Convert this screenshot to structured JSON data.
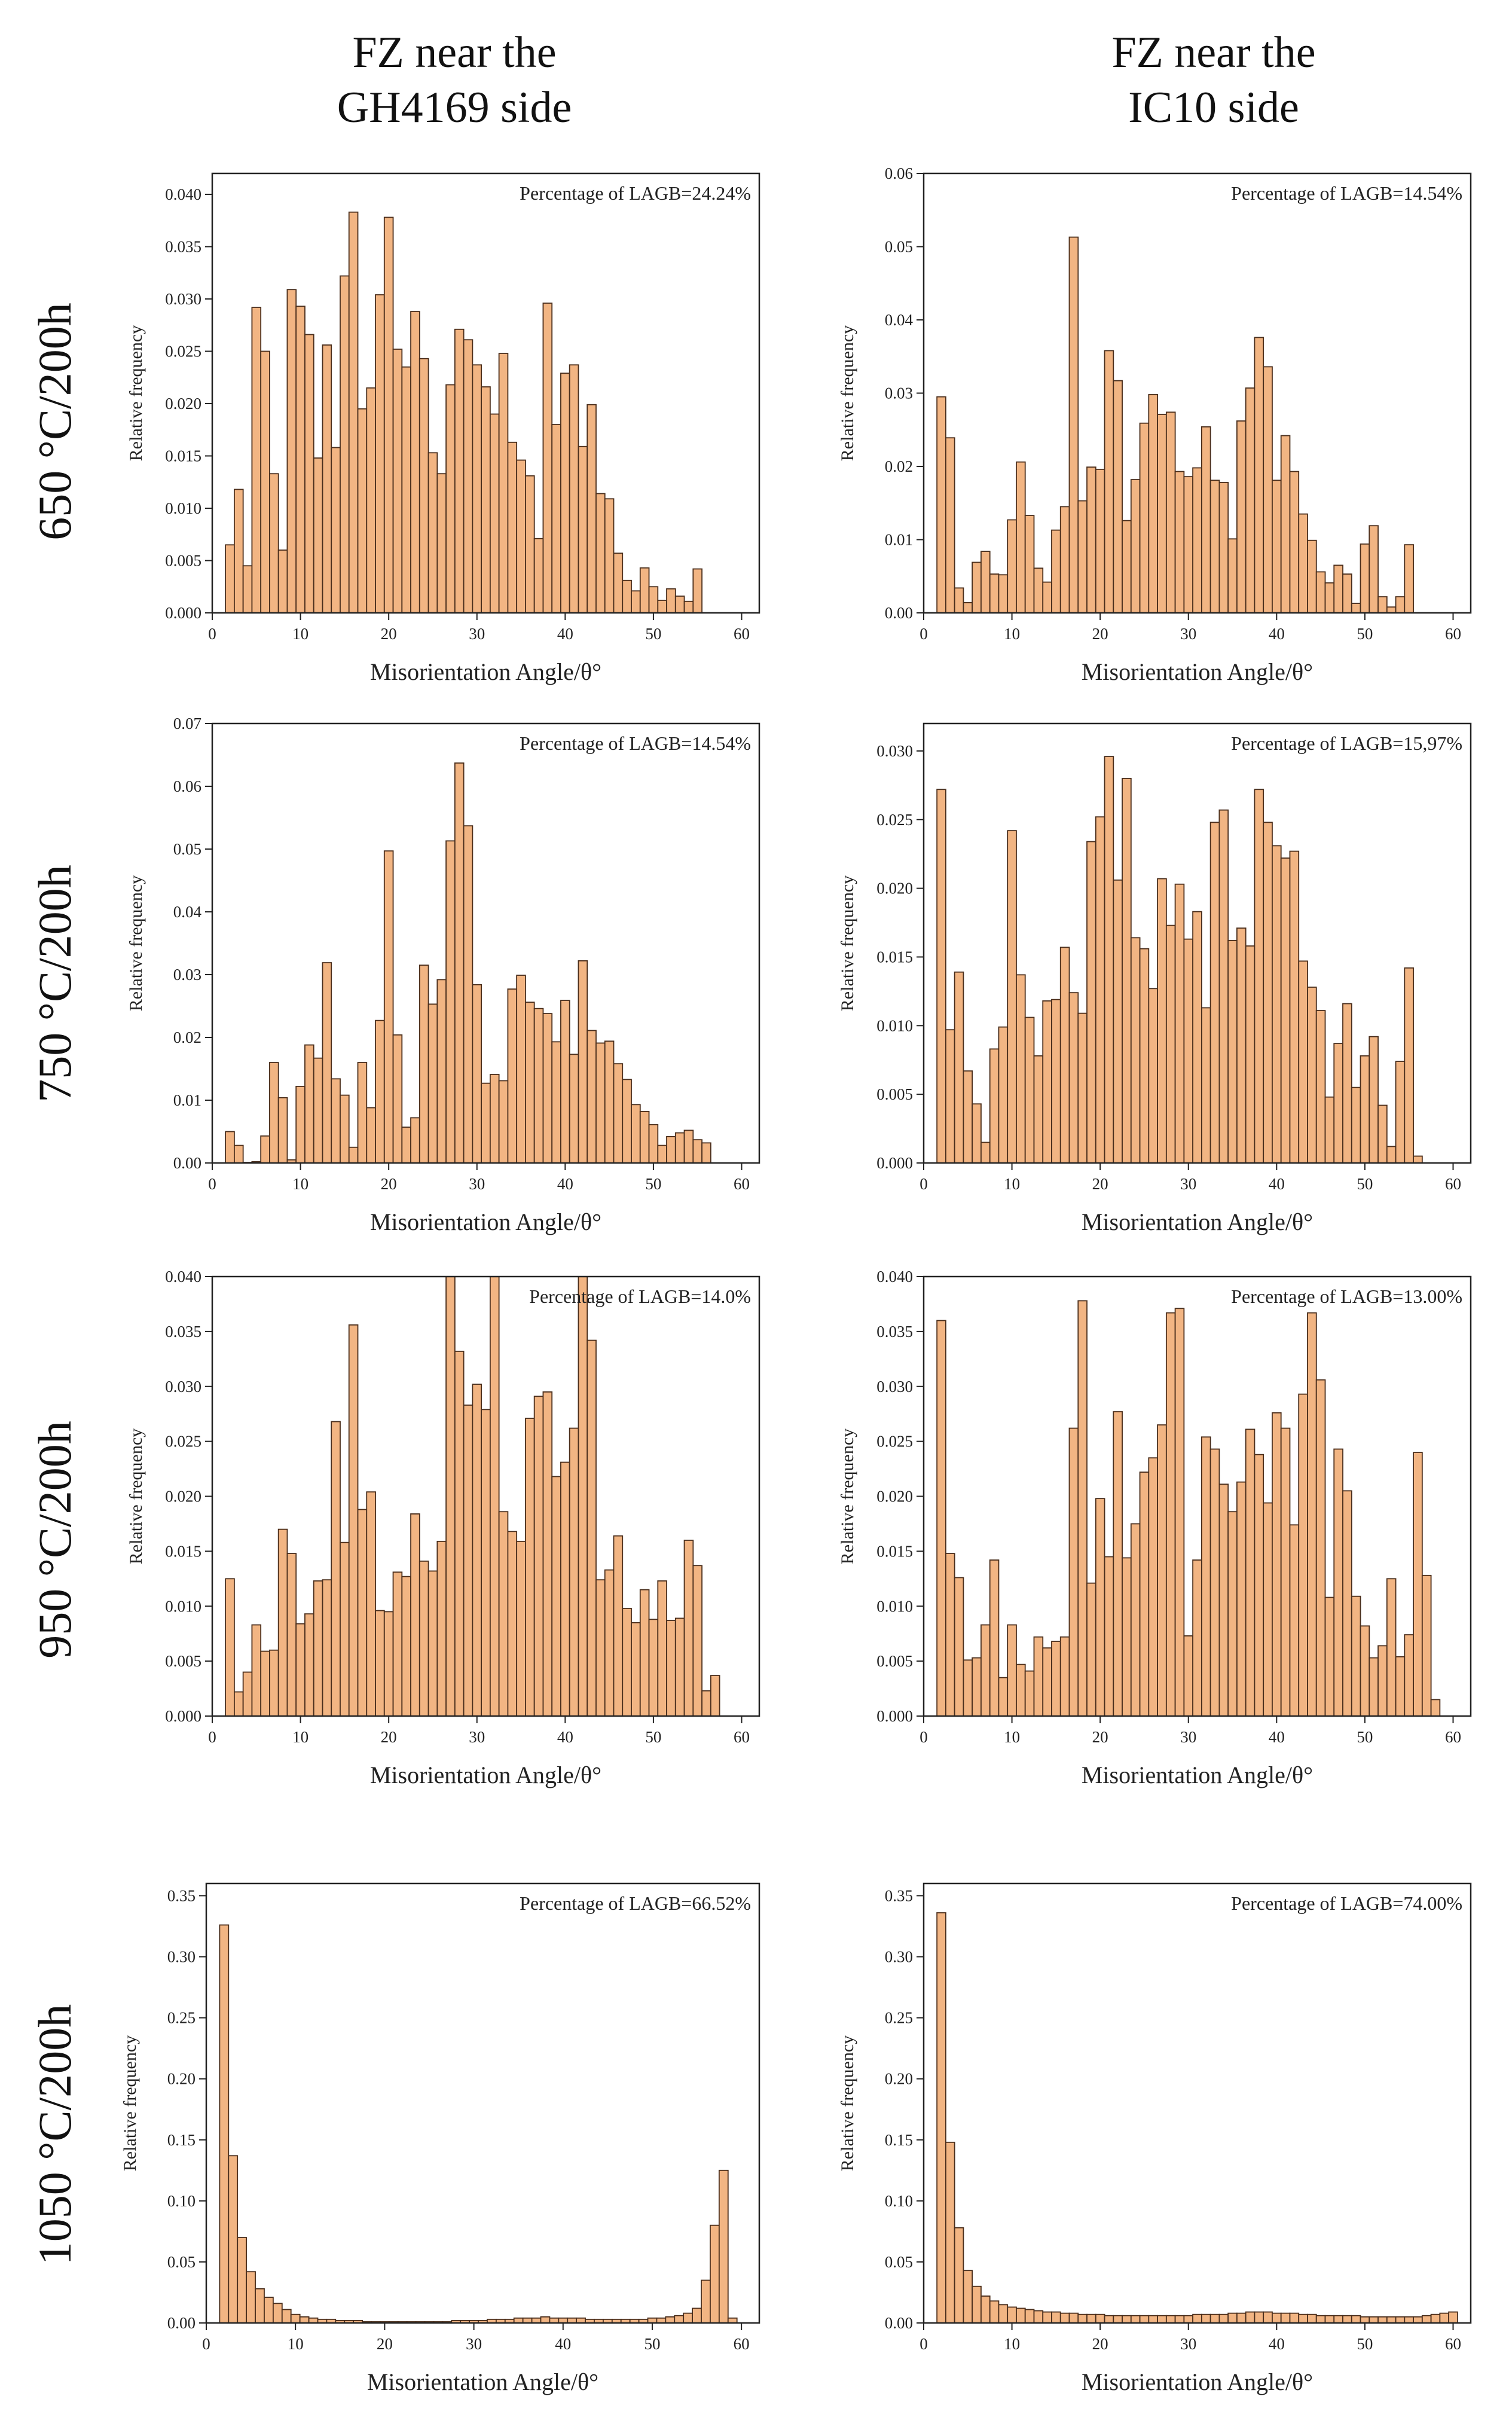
{
  "figure": {
    "column_titles": [
      {
        "line1": "FZ near the",
        "line2": "GH4169 side"
      },
      {
        "line1": "FZ near the",
        "line2": "IC10 side"
      }
    ],
    "row_labels": [
      "650 °C/200h",
      "750 °C/200h",
      "950 °C/200h",
      "1050 °C/200h"
    ]
  },
  "chart_data": [
    {
      "id": "r0c0",
      "type": "bar",
      "title": "",
      "xlabel": "Misorientation Angle/θ°",
      "ylabel": "Relative frequency",
      "xlim": [
        0,
        62
      ],
      "ylim": [
        0,
        0.042
      ],
      "xticks": [
        0,
        10,
        20,
        30,
        40,
        50,
        60
      ],
      "yticks": [
        0,
        0.005,
        0.01,
        0.015,
        0.02,
        0.025,
        0.03,
        0.035,
        0.04
      ],
      "ytick_labels": [
        "0.000",
        "0.005",
        "0.010",
        "0.015",
        "0.020",
        "0.025",
        "0.030",
        "0.035",
        "0.040"
      ],
      "bar_width": 1,
      "annotation": "Percentage of LAGB=24.24%",
      "x_start": 2,
      "values": [
        0.0065,
        0.0118,
        0.0045,
        0.0292,
        0.025,
        0.0133,
        0.006,
        0.0309,
        0.0293,
        0.0266,
        0.0148,
        0.0256,
        0.0158,
        0.0322,
        0.0383,
        0.0195,
        0.0215,
        0.0304,
        0.0378,
        0.0252,
        0.0235,
        0.0288,
        0.0243,
        0.0153,
        0.0133,
        0.0218,
        0.0271,
        0.0261,
        0.0237,
        0.0216,
        0.019,
        0.0248,
        0.0163,
        0.0146,
        0.0131,
        0.0071,
        0.0296,
        0.018,
        0.0229,
        0.0237,
        0.0159,
        0.0199,
        0.0114,
        0.0109,
        0.0057,
        0.0031,
        0.0021,
        0.0043,
        0.0025,
        0.0012,
        0.0023,
        0.0016,
        0.0011,
        0.0042
      ]
    },
    {
      "id": "r0c1",
      "type": "bar",
      "title": "",
      "xlabel": "Misorientation Angle/θ°",
      "ylabel": "Relative frequency",
      "xlim": [
        0,
        62
      ],
      "ylim": [
        0,
        0.06
      ],
      "xticks": [
        0,
        10,
        20,
        30,
        40,
        50,
        60
      ],
      "yticks": [
        0,
        0.01,
        0.02,
        0.03,
        0.04,
        0.05,
        0.06
      ],
      "ytick_labels": [
        "0.00",
        "0.01",
        "0.02",
        "0.03",
        "0.04",
        "0.05",
        "0.06"
      ],
      "bar_width": 1,
      "annotation": "Percentage of LAGB=14.54%",
      "x_start": 2,
      "values": [
        0.0295,
        0.0239,
        0.0034,
        0.0014,
        0.0069,
        0.0084,
        0.0053,
        0.0052,
        0.0127,
        0.0206,
        0.0133,
        0.0061,
        0.0042,
        0.0113,
        0.0145,
        0.0513,
        0.0153,
        0.0199,
        0.0196,
        0.0358,
        0.0317,
        0.0126,
        0.0182,
        0.0259,
        0.0298,
        0.0271,
        0.0274,
        0.0193,
        0.0186,
        0.0198,
        0.0254,
        0.0181,
        0.0178,
        0.0101,
        0.0262,
        0.0307,
        0.0376,
        0.0336,
        0.0181,
        0.0242,
        0.0193,
        0.0135,
        0.0099,
        0.0056,
        0.0041,
        0.0065,
        0.0053,
        0.0013,
        0.0094,
        0.0119,
        0.0022,
        0.0008,
        0.0022,
        0.0093
      ]
    },
    {
      "id": "r1c0",
      "type": "bar",
      "title": "",
      "xlabel": "Misorientation Angle/θ°",
      "ylabel": "Relative frequency",
      "xlim": [
        0,
        62
      ],
      "ylim": [
        0,
        0.07
      ],
      "xticks": [
        0,
        10,
        20,
        30,
        40,
        50,
        60
      ],
      "yticks": [
        0,
        0.01,
        0.02,
        0.03,
        0.04,
        0.05,
        0.06,
        0.07
      ],
      "ytick_labels": [
        "0.00",
        "0.01",
        "0.02",
        "0.03",
        "0.04",
        "0.05",
        "0.06",
        "0.07"
      ],
      "bar_width": 1,
      "annotation": "Percentage of LAGB=14.54%",
      "x_start": 2,
      "values": [
        0.005,
        0.0028,
        0.0001,
        0.0002,
        0.0043,
        0.016,
        0.0104,
        0.0005,
        0.0122,
        0.0188,
        0.0167,
        0.0319,
        0.0134,
        0.0108,
        0.0025,
        0.016,
        0.0088,
        0.0227,
        0.0497,
        0.0204,
        0.0057,
        0.0072,
        0.0315,
        0.0253,
        0.0292,
        0.0513,
        0.0637,
        0.0537,
        0.0284,
        0.0127,
        0.0141,
        0.0131,
        0.0277,
        0.0299,
        0.0256,
        0.0246,
        0.0238,
        0.0193,
        0.0259,
        0.0173,
        0.0322,
        0.0211,
        0.0191,
        0.0194,
        0.0158,
        0.0133,
        0.0093,
        0.0082,
        0.0061,
        0.0028,
        0.0042,
        0.0048,
        0.0052,
        0.0037,
        0.0032
      ]
    },
    {
      "id": "r1c1",
      "type": "bar",
      "title": "",
      "xlabel": "Misorientation Angle/θ°",
      "ylabel": "Relative frequency",
      "xlim": [
        0,
        62
      ],
      "ylim": [
        0,
        0.032
      ],
      "xticks": [
        0,
        10,
        20,
        30,
        40,
        50,
        60
      ],
      "yticks": [
        0,
        0.005,
        0.01,
        0.015,
        0.02,
        0.025,
        0.03
      ],
      "ytick_labels": [
        "0.000",
        "0.005",
        "0.010",
        "0.015",
        "0.020",
        "0.025",
        "0.030"
      ],
      "bar_width": 1,
      "annotation": "Percentage of LAGB=15,97%",
      "x_start": 2,
      "values": [
        0.0272,
        0.0097,
        0.0139,
        0.0067,
        0.0043,
        0.0015,
        0.0083,
        0.0099,
        0.0242,
        0.0137,
        0.0106,
        0.0078,
        0.0118,
        0.0119,
        0.0157,
        0.0124,
        0.0109,
        0.0234,
        0.0252,
        0.0296,
        0.0206,
        0.028,
        0.0164,
        0.0156,
        0.0127,
        0.0207,
        0.0173,
        0.0203,
        0.0163,
        0.0183,
        0.0113,
        0.0248,
        0.0257,
        0.0162,
        0.0171,
        0.0158,
        0.0272,
        0.0248,
        0.0231,
        0.0222,
        0.0227,
        0.0147,
        0.0128,
        0.0111,
        0.0048,
        0.0087,
        0.0116,
        0.0055,
        0.0078,
        0.0092,
        0.0042,
        0.0012,
        0.0074,
        0.0142,
        0.0005
      ]
    },
    {
      "id": "r2c0",
      "type": "bar",
      "title": "",
      "xlabel": "Misorientation Angle/θ°",
      "ylabel": "Relative frequency",
      "xlim": [
        0,
        62
      ],
      "ylim": [
        0,
        0.04
      ],
      "xticks": [
        0,
        10,
        20,
        30,
        40,
        50,
        60
      ],
      "yticks": [
        0,
        0.005,
        0.01,
        0.015,
        0.02,
        0.025,
        0.03,
        0.035,
        0.04
      ],
      "ytick_labels": [
        "0.000",
        "0.005",
        "0.010",
        "0.015",
        "0.020",
        "0.025",
        "0.030",
        "0.035",
        "0.040"
      ],
      "bar_width": 1,
      "annotation": "Percentage of LAGB=14.0%",
      "x_start": 2,
      "values": [
        0.0125,
        0.0022,
        0.004,
        0.0083,
        0.0059,
        0.006,
        0.017,
        0.0148,
        0.0084,
        0.0093,
        0.0123,
        0.0124,
        0.0268,
        0.0158,
        0.0356,
        0.0188,
        0.0204,
        0.0096,
        0.0095,
        0.0131,
        0.0127,
        0.0184,
        0.0141,
        0.0132,
        0.0159,
        0.04,
        0.0332,
        0.0283,
        0.0302,
        0.0279,
        0.04,
        0.0186,
        0.0168,
        0.0159,
        0.0271,
        0.0291,
        0.0295,
        0.0218,
        0.0231,
        0.0262,
        0.04,
        0.0342,
        0.0124,
        0.0133,
        0.0164,
        0.0098,
        0.0085,
        0.0115,
        0.0088,
        0.0123,
        0.0087,
        0.0089,
        0.016,
        0.0137,
        0.0023,
        0.0037
      ]
    },
    {
      "id": "r2c1",
      "type": "bar",
      "title": "",
      "xlabel": "Misorientation Angle/θ°",
      "ylabel": "Relative frequency",
      "xlim": [
        0,
        62
      ],
      "ylim": [
        0,
        0.04
      ],
      "xticks": [
        0,
        10,
        20,
        30,
        40,
        50,
        60
      ],
      "yticks": [
        0,
        0.005,
        0.01,
        0.015,
        0.02,
        0.025,
        0.03,
        0.035,
        0.04
      ],
      "ytick_labels": [
        "0.000",
        "0.005",
        "0.010",
        "0.015",
        "0.020",
        "0.025",
        "0.030",
        "0.035",
        "0.040"
      ],
      "bar_width": 1,
      "annotation": "Percentage of LAGB=13.00%",
      "x_start": 2,
      "values": [
        0.036,
        0.0148,
        0.0126,
        0.0051,
        0.0053,
        0.0083,
        0.0142,
        0.0035,
        0.0083,
        0.0047,
        0.0041,
        0.0072,
        0.0062,
        0.0068,
        0.0072,
        0.0262,
        0.0378,
        0.0121,
        0.0198,
        0.0145,
        0.0277,
        0.0144,
        0.0175,
        0.0222,
        0.0235,
        0.0265,
        0.0367,
        0.0371,
        0.0073,
        0.0142,
        0.0254,
        0.0243,
        0.0211,
        0.0186,
        0.0213,
        0.0261,
        0.0238,
        0.0194,
        0.0276,
        0.0262,
        0.0174,
        0.0293,
        0.0367,
        0.0306,
        0.0108,
        0.0243,
        0.0205,
        0.0109,
        0.0082,
        0.0053,
        0.0064,
        0.0125,
        0.0054,
        0.0074,
        0.024,
        0.0128,
        0.0015
      ]
    },
    {
      "id": "r3c0",
      "type": "bar",
      "title": "",
      "xlabel": "Misorientation Angle/θ°",
      "ylabel": "Relative frequency",
      "xlim": [
        0,
        62
      ],
      "ylim": [
        0,
        0.36
      ],
      "xticks": [
        0,
        10,
        20,
        30,
        40,
        50,
        60
      ],
      "yticks": [
        0,
        0.05,
        0.1,
        0.15,
        0.2,
        0.25,
        0.3,
        0.35
      ],
      "ytick_labels": [
        "0.00",
        "0.05",
        "0.10",
        "0.15",
        "0.20",
        "0.25",
        "0.30",
        "0.35"
      ],
      "bar_width": 1,
      "annotation": "Percentage of LAGB=66.52%",
      "x_start": 2,
      "values": [
        0.326,
        0.137,
        0.07,
        0.042,
        0.028,
        0.021,
        0.016,
        0.011,
        0.007,
        0.005,
        0.004,
        0.003,
        0.003,
        0.002,
        0.002,
        0.002,
        0.001,
        0.001,
        0.001,
        0.001,
        0.001,
        0.001,
        0.001,
        0.001,
        0.001,
        0.001,
        0.002,
        0.002,
        0.002,
        0.002,
        0.003,
        0.003,
        0.003,
        0.004,
        0.004,
        0.004,
        0.005,
        0.004,
        0.004,
        0.004,
        0.004,
        0.003,
        0.003,
        0.003,
        0.003,
        0.003,
        0.003,
        0.003,
        0.004,
        0.004,
        0.005,
        0.006,
        0.008,
        0.012,
        0.035,
        0.08,
        0.125,
        0.004
      ]
    },
    {
      "id": "r3c1",
      "type": "bar",
      "title": "",
      "xlabel": "Misorientation Angle/θ°",
      "ylabel": "Relative frequency",
      "xlim": [
        0,
        62
      ],
      "ylim": [
        0,
        0.36
      ],
      "xticks": [
        0,
        10,
        20,
        30,
        40,
        50,
        60
      ],
      "yticks": [
        0,
        0.05,
        0.1,
        0.15,
        0.2,
        0.25,
        0.3,
        0.35
      ],
      "ytick_labels": [
        "0.00",
        "0.05",
        "0.10",
        "0.15",
        "0.20",
        "0.25",
        "0.30",
        "0.35"
      ],
      "bar_width": 1,
      "annotation": "Percentage of LAGB=74.00%",
      "x_start": 2,
      "values": [
        0.336,
        0.148,
        0.078,
        0.043,
        0.03,
        0.022,
        0.018,
        0.015,
        0.013,
        0.012,
        0.011,
        0.01,
        0.009,
        0.009,
        0.008,
        0.008,
        0.007,
        0.007,
        0.007,
        0.006,
        0.006,
        0.006,
        0.006,
        0.006,
        0.006,
        0.006,
        0.006,
        0.006,
        0.006,
        0.007,
        0.007,
        0.007,
        0.007,
        0.008,
        0.008,
        0.009,
        0.009,
        0.009,
        0.008,
        0.008,
        0.008,
        0.007,
        0.007,
        0.006,
        0.006,
        0.006,
        0.006,
        0.006,
        0.005,
        0.005,
        0.005,
        0.005,
        0.005,
        0.005,
        0.005,
        0.006,
        0.007,
        0.008,
        0.009
      ]
    }
  ]
}
